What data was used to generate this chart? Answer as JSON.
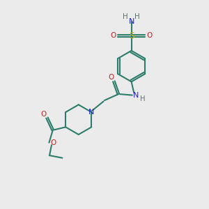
{
  "bg_color": "#ebebeb",
  "bond_color": "#2d7d6b",
  "N_color": "#2020cc",
  "O_color": "#cc2020",
  "S_color": "#b8b800",
  "H_color": "#607070",
  "line_width": 1.5,
  "fig_size": [
    3.0,
    3.0
  ],
  "dpi": 100,
  "xlim": [
    0,
    10
  ],
  "ylim": [
    0,
    10
  ]
}
